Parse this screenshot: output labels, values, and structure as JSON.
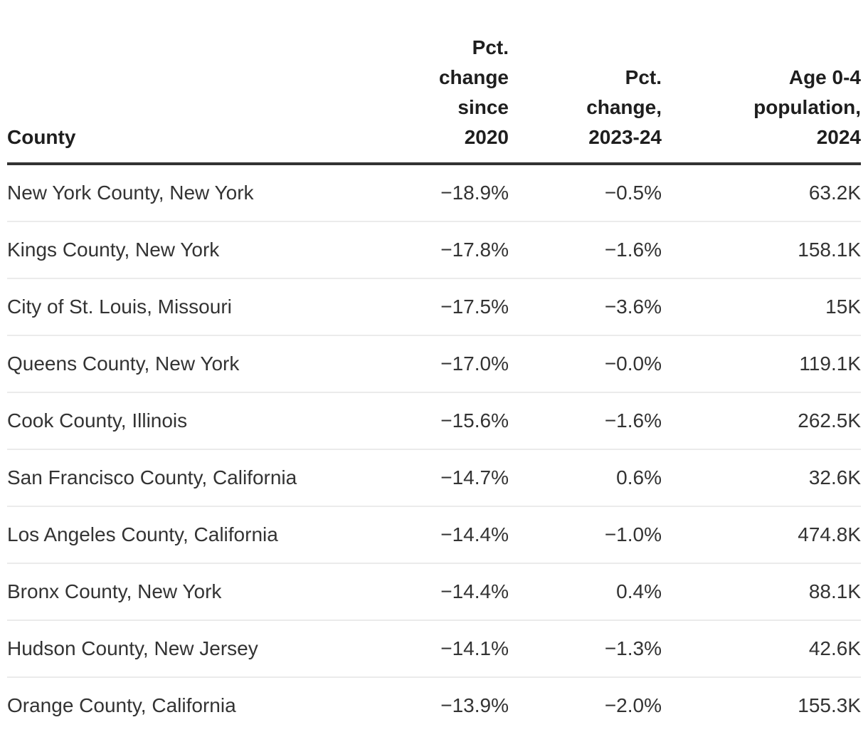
{
  "colors": {
    "background": "#ffffff",
    "header_text": "#1e1e1e",
    "body_text": "#333333",
    "header_rule": "#333333",
    "row_divider": "#ebebeb"
  },
  "table": {
    "columns": [
      {
        "id": "county",
        "label": "County",
        "align": "left"
      },
      {
        "id": "pct_change_since_2020",
        "label": "Pct.\nchange\nsince\n2020",
        "align": "right"
      },
      {
        "id": "pct_change_2023_24",
        "label": "Pct.\nchange,\n2023-24",
        "align": "right"
      },
      {
        "id": "age_0_4_population_2024",
        "label": "Age 0-4\npopulation,\n2024",
        "align": "right"
      }
    ],
    "rows": [
      [
        "New York County, New York",
        "−18.9%",
        "−0.5%",
        "63.2K"
      ],
      [
        "Kings County, New York",
        "−17.8%",
        "−1.6%",
        "158.1K"
      ],
      [
        "City of St. Louis, Missouri",
        "−17.5%",
        "−3.6%",
        "15K"
      ],
      [
        "Queens County, New York",
        "−17.0%",
        "−0.0%",
        "119.1K"
      ],
      [
        "Cook County, Illinois",
        "−15.6%",
        "−1.6%",
        "262.5K"
      ],
      [
        "San Francisco County, California",
        "−14.7%",
        "0.6%",
        "32.6K"
      ],
      [
        "Los Angeles County, California",
        "−14.4%",
        "−1.0%",
        "474.8K"
      ],
      [
        "Bronx County, New York",
        "−14.4%",
        "0.4%",
        "88.1K"
      ],
      [
        "Hudson County, New Jersey",
        "−14.1%",
        "−1.3%",
        "42.6K"
      ],
      [
        "Orange County, California",
        "−13.9%",
        "−2.0%",
        "155.3K"
      ]
    ]
  },
  "chart_data": {
    "type": "table",
    "columns": [
      "County",
      "Pct. change since 2020",
      "Pct. change, 2023-24",
      "Age 0-4 population, 2024"
    ],
    "rows": [
      {
        "county": "New York County, New York",
        "pct_change_since_2020": -18.9,
        "pct_change_2023_24": -0.5,
        "age_0_4_population_2024": "63.2K"
      },
      {
        "county": "Kings County, New York",
        "pct_change_since_2020": -17.8,
        "pct_change_2023_24": -1.6,
        "age_0_4_population_2024": "158.1K"
      },
      {
        "county": "City of St. Louis, Missouri",
        "pct_change_since_2020": -17.5,
        "pct_change_2023_24": -3.6,
        "age_0_4_population_2024": "15K"
      },
      {
        "county": "Queens County, New York",
        "pct_change_since_2020": -17.0,
        "pct_change_2023_24": -0.0,
        "age_0_4_population_2024": "119.1K"
      },
      {
        "county": "Cook County, Illinois",
        "pct_change_since_2020": -15.6,
        "pct_change_2023_24": -1.6,
        "age_0_4_population_2024": "262.5K"
      },
      {
        "county": "San Francisco County, California",
        "pct_change_since_2020": -14.7,
        "pct_change_2023_24": 0.6,
        "age_0_4_population_2024": "32.6K"
      },
      {
        "county": "Los Angeles County, California",
        "pct_change_since_2020": -14.4,
        "pct_change_2023_24": -1.0,
        "age_0_4_population_2024": "474.8K"
      },
      {
        "county": "Bronx County, New York",
        "pct_change_since_2020": -14.4,
        "pct_change_2023_24": 0.4,
        "age_0_4_population_2024": "88.1K"
      },
      {
        "county": "Hudson County, New Jersey",
        "pct_change_since_2020": -14.1,
        "pct_change_2023_24": -1.3,
        "age_0_4_population_2024": "42.6K"
      },
      {
        "county": "Orange County, California",
        "pct_change_since_2020": -13.9,
        "pct_change_2023_24": -2.0,
        "age_0_4_population_2024": "155.3K"
      }
    ]
  }
}
